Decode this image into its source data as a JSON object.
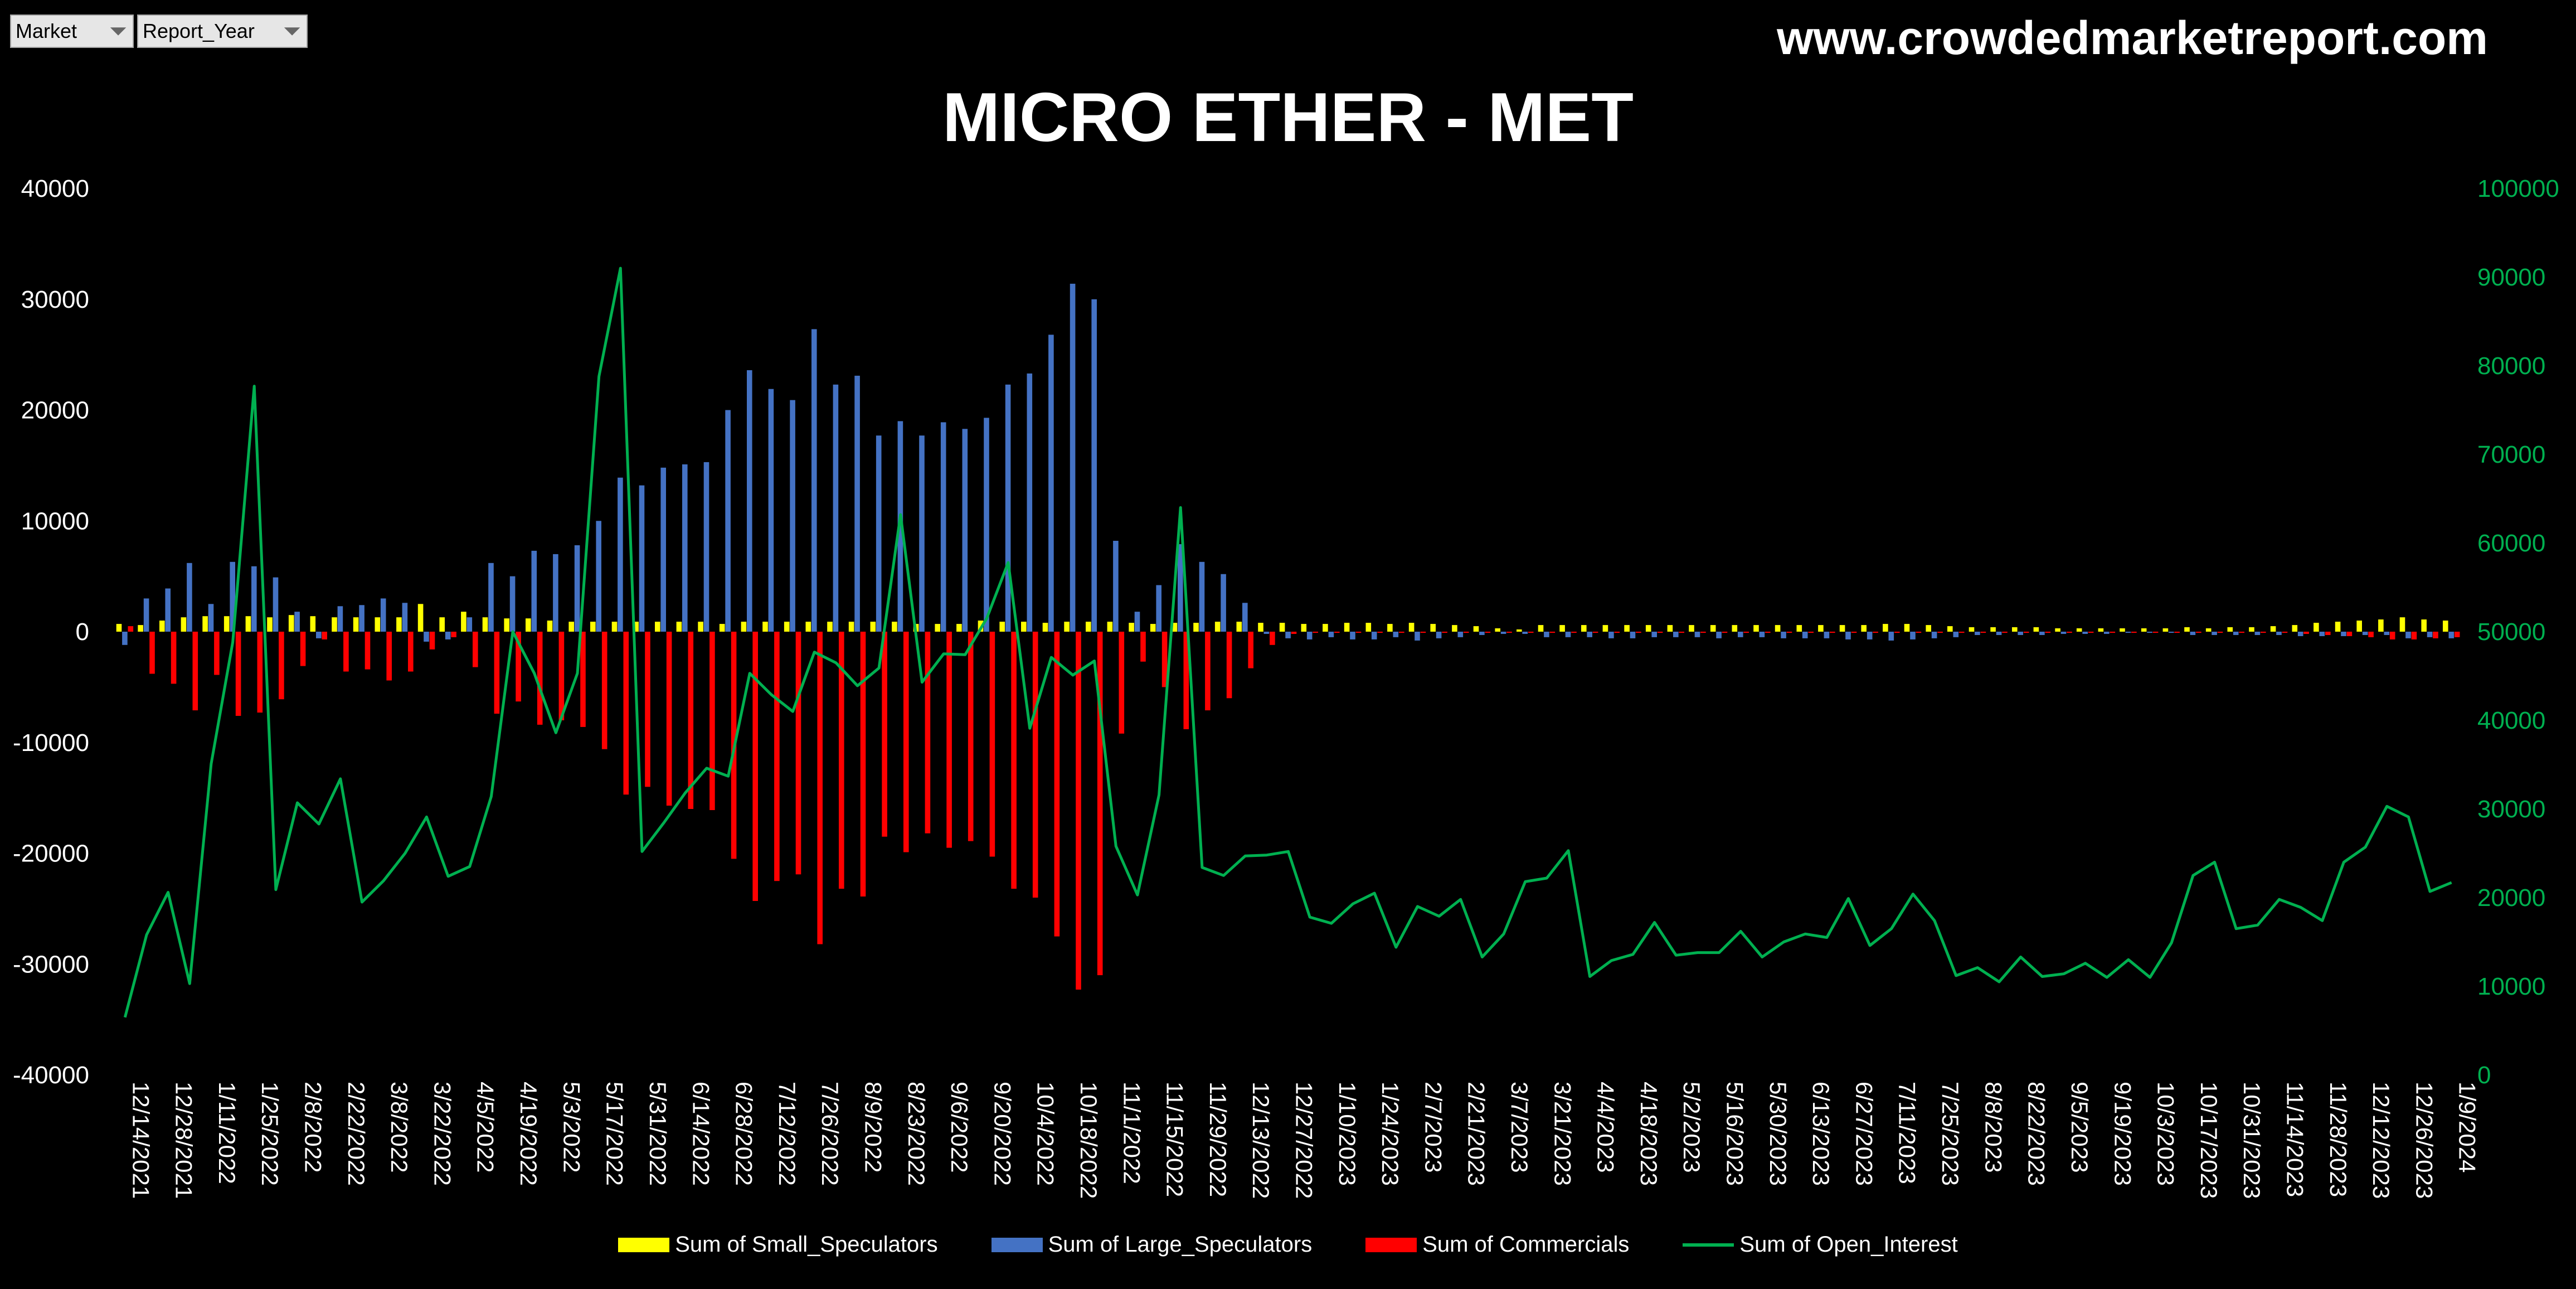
{
  "filters": [
    {
      "label": "Market"
    },
    {
      "label": "Report_Year"
    }
  ],
  "website": "www.crowdedmarketreport.com",
  "colors": {
    "small_speculators": "#FFFF00",
    "large_speculators": "#4472C4",
    "commercials": "#FF0000",
    "open_interest": "#00B050",
    "background": "#000000"
  },
  "chart_data": {
    "type": "bar",
    "title": "MICRO ETHER - MET",
    "xlabel": "",
    "ylabel": "",
    "ylim": [
      -40000,
      40000
    ],
    "y2lim": [
      0,
      100000
    ],
    "yticks": [
      -40000,
      -30000,
      -20000,
      -10000,
      0,
      10000,
      20000,
      30000,
      40000
    ],
    "y2ticks": [
      0,
      10000,
      20000,
      30000,
      40000,
      50000,
      60000,
      70000,
      80000,
      90000,
      100000
    ],
    "grid": false,
    "legend_position": "bottom",
    "categories": [
      "12/14/2021",
      "12/21/2021",
      "12/28/2021",
      "1/4/2022",
      "1/11/2022",
      "1/18/2022",
      "1/25/2022",
      "2/1/2022",
      "2/8/2022",
      "2/15/2022",
      "2/22/2022",
      "3/1/2022",
      "3/8/2022",
      "3/15/2022",
      "3/22/2022",
      "3/29/2022",
      "4/5/2022",
      "4/12/2022",
      "4/19/2022",
      "4/26/2022",
      "5/3/2022",
      "5/10/2022",
      "5/17/2022",
      "5/24/2022",
      "5/31/2022",
      "6/7/2022",
      "6/14/2022",
      "6/21/2022",
      "6/28/2022",
      "7/5/2022",
      "7/12/2022",
      "7/19/2022",
      "7/26/2022",
      "8/2/2022",
      "8/9/2022",
      "8/16/2022",
      "8/23/2022",
      "8/30/2022",
      "9/6/2022",
      "9/13/2022",
      "9/20/2022",
      "9/27/2022",
      "10/4/2022",
      "10/11/2022",
      "10/18/2022",
      "10/25/2022",
      "11/1/2022",
      "11/8/2022",
      "11/15/2022",
      "11/22/2022",
      "11/29/2022",
      "12/6/2022",
      "12/13/2022",
      "12/20/2022",
      "12/27/2022",
      "1/3/2023",
      "1/10/2023",
      "1/17/2023",
      "1/24/2023",
      "1/31/2023",
      "2/7/2023",
      "2/14/2023",
      "2/21/2023",
      "2/28/2023",
      "3/7/2023",
      "3/14/2023",
      "3/21/2023",
      "3/28/2023",
      "4/4/2023",
      "4/11/2023",
      "4/18/2023",
      "4/25/2023",
      "5/2/2023",
      "5/9/2023",
      "5/16/2023",
      "5/23/2023",
      "5/30/2023",
      "6/6/2023",
      "6/13/2023",
      "6/20/2023",
      "6/27/2023",
      "7/4/2023",
      "7/11/2023",
      "7/18/2023",
      "7/25/2023",
      "8/1/2023",
      "8/8/2023",
      "8/15/2023",
      "8/22/2023",
      "8/29/2023",
      "9/5/2023",
      "9/12/2023",
      "9/19/2023",
      "9/26/2023",
      "10/3/2023",
      "10/10/2023",
      "10/17/2023",
      "10/24/2023",
      "10/31/2023",
      "11/7/2023",
      "11/14/2023",
      "11/21/2023",
      "11/28/2023",
      "12/5/2023",
      "12/12/2023",
      "12/19/2023",
      "12/26/2023",
      "1/2/2024",
      "1/9/2024"
    ],
    "series": [
      {
        "name": "Sum of Small_Speculators",
        "axis": "left",
        "values": [
          700,
          600,
          1000,
          1300,
          1400,
          1400,
          1400,
          1300,
          1500,
          1400,
          1300,
          1300,
          1300,
          1300,
          2500,
          1300,
          1800,
          1300,
          1200,
          1200,
          1000,
          900,
          900,
          900,
          900,
          900,
          900,
          900,
          700,
          900,
          900,
          900,
          900,
          900,
          900,
          900,
          900,
          700,
          700,
          700,
          1000,
          900,
          900,
          800,
          900,
          900,
          900,
          800,
          700,
          800,
          800,
          900,
          900,
          800,
          800,
          700,
          700,
          800,
          800,
          700,
          800,
          700,
          600,
          500,
          300,
          200,
          600,
          600,
          600,
          600,
          600,
          600,
          600,
          600,
          600,
          600,
          600,
          600,
          600,
          600,
          600,
          600,
          700,
          700,
          600,
          500,
          400,
          400,
          400,
          400,
          300,
          300,
          300,
          300,
          300,
          300,
          400,
          300,
          400,
          400,
          500,
          600,
          800,
          900,
          1000,
          1100,
          1300,
          1100,
          1000
        ]
      },
      {
        "name": "Sum of Large_Speculators",
        "axis": "left",
        "values": [
          -1200,
          3000,
          3900,
          6200,
          2500,
          6300,
          5900,
          4900,
          1800,
          -600,
          2300,
          2400,
          3000,
          2600,
          -900,
          -700,
          1300,
          6200,
          5000,
          7300,
          7000,
          7800,
          10000,
          13900,
          13200,
          14800,
          15100,
          15300,
          20000,
          23600,
          21900,
          20900,
          27300,
          22300,
          23100,
          17700,
          19000,
          17700,
          18900,
          18300,
          19300,
          22300,
          23300,
          26800,
          31400,
          30000,
          8200,
          1800,
          4200,
          7900,
          6300,
          5200,
          2600,
          -200,
          -600,
          -700,
          -500,
          -700,
          -700,
          -500,
          -800,
          -600,
          -500,
          -300,
          -200,
          -200,
          -500,
          -500,
          -500,
          -600,
          -600,
          -500,
          -500,
          -500,
          -600,
          -500,
          -500,
          -600,
          -600,
          -600,
          -700,
          -700,
          -800,
          -700,
          -600,
          -500,
          -300,
          -300,
          -300,
          -300,
          -200,
          -200,
          -200,
          -100,
          -100,
          -100,
          -300,
          -300,
          -300,
          -300,
          -300,
          -400,
          -400,
          -400,
          -300,
          -300,
          -600,
          -500,
          -600
        ]
      },
      {
        "name": "Sum of Commercials",
        "axis": "left",
        "values": [
          500,
          -3800,
          -4700,
          -7100,
          -3900,
          -7600,
          -7300,
          -6100,
          -3100,
          -700,
          -3600,
          -3400,
          -4400,
          -3600,
          -1600,
          -500,
          -3200,
          -7400,
          -6300,
          -8400,
          -8000,
          -8600,
          -10600,
          -14700,
          -14000,
          -15700,
          -16000,
          -16100,
          -20500,
          -24300,
          -22500,
          -21900,
          -28200,
          -23200,
          -23900,
          -18500,
          -19900,
          -18200,
          -19500,
          -18900,
          -20300,
          -23200,
          -24000,
          -27500,
          -32300,
          -31000,
          -9200,
          -2700,
          -5000,
          -8800,
          -7100,
          -6000,
          -3300,
          -1200,
          -200,
          -100,
          -100,
          -100,
          -100,
          -100,
          -100,
          -100,
          -100,
          -100,
          -100,
          -100,
          -100,
          -100,
          -100,
          -100,
          -100,
          -100,
          -100,
          -100,
          -100,
          -100,
          -100,
          -100,
          -100,
          -100,
          -100,
          -100,
          -100,
          -100,
          -100,
          -100,
          -100,
          -100,
          -100,
          -100,
          -100,
          -100,
          -100,
          -100,
          -100,
          -100,
          -100,
          -100,
          -100,
          -100,
          -100,
          -200,
          -300,
          -400,
          -500,
          -700,
          -700,
          -600,
          -500
        ]
      },
      {
        "name": "Sum of Open_Interest",
        "axis": "right",
        "type": "line",
        "values": [
          6500,
          15800,
          20600,
          10300,
          35100,
          48800,
          77700,
          20900,
          30700,
          28300,
          33400,
          19500,
          21900,
          25000,
          29100,
          22400,
          23500,
          31400,
          50000,
          45300,
          38600,
          45300,
          78800,
          91000,
          25200,
          28400,
          31800,
          34600,
          33700,
          45300,
          42900,
          41000,
          47700,
          46500,
          43900,
          45900,
          63200,
          44300,
          47500,
          47400,
          51500,
          57800,
          39100,
          47100,
          45100,
          46700,
          25800,
          20300,
          31600,
          64000,
          23400,
          22500,
          24700,
          24800,
          25200,
          17800,
          17100,
          19300,
          20500,
          14400,
          19000,
          17900,
          19800,
          13300,
          15900,
          21800,
          22200,
          25300,
          11100,
          12900,
          13600,
          17200,
          13500,
          13800,
          13800,
          16200,
          13300,
          15000,
          15900,
          15500,
          19900,
          14600,
          16500,
          20400,
          17400,
          11200,
          12100,
          10500,
          13300,
          11100,
          11400,
          12600,
          11000,
          13000,
          11000,
          14900,
          22500,
          24000,
          16500,
          16900,
          19800,
          18900,
          17400,
          24000,
          25700,
          30300,
          29100,
          20700,
          21700
        ]
      }
    ]
  }
}
